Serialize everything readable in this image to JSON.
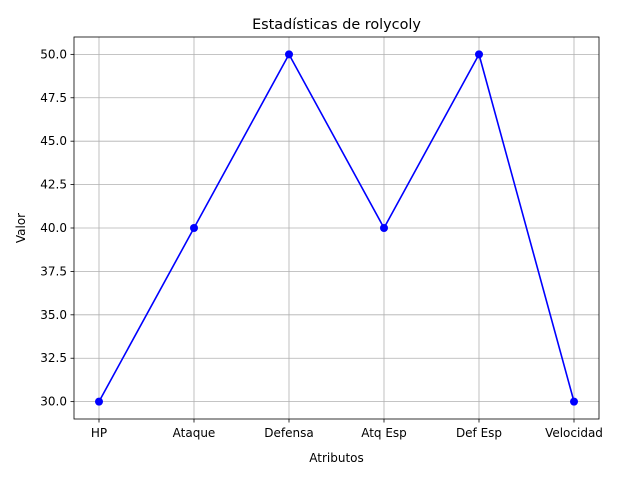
{
  "chart_data": {
    "type": "line",
    "title": "Estadísticas de rolycoly",
    "xlabel": "Atributos",
    "ylabel": "Valor",
    "categories": [
      "HP",
      "Ataque",
      "Defensa",
      "Atq Esp",
      "Def Esp",
      "Velocidad"
    ],
    "series": [
      {
        "values": [
          30,
          40,
          50,
          40,
          50,
          30
        ],
        "color": "#0000ff",
        "marker": "circle"
      }
    ],
    "ylim": [
      29,
      51
    ],
    "yticks": [
      30.0,
      32.5,
      35.0,
      37.5,
      40.0,
      42.5,
      45.0,
      47.5,
      50.0
    ],
    "ytick_labels": [
      "30.0",
      "32.5",
      "35.0",
      "37.5",
      "40.0",
      "42.5",
      "45.0",
      "47.5",
      "50.0"
    ],
    "grid": true,
    "legend": "none"
  }
}
